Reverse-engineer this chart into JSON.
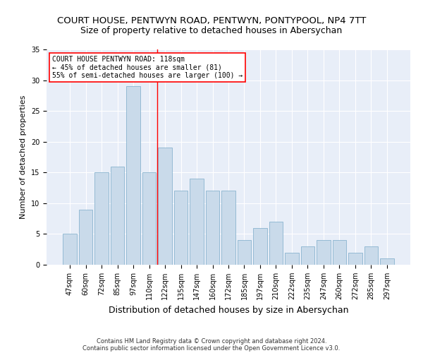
{
  "title": "COURT HOUSE, PENTWYN ROAD, PENTWYN, PONTYPOOL, NP4 7TT",
  "subtitle": "Size of property relative to detached houses in Abersychan",
  "xlabel": "Distribution of detached houses by size in Abersychan",
  "ylabel": "Number of detached properties",
  "categories": [
    "47sqm",
    "60sqm",
    "72sqm",
    "85sqm",
    "97sqm",
    "110sqm",
    "122sqm",
    "135sqm",
    "147sqm",
    "160sqm",
    "172sqm",
    "185sqm",
    "197sqm",
    "210sqm",
    "222sqm",
    "235sqm",
    "247sqm",
    "260sqm",
    "272sqm",
    "285sqm",
    "297sqm"
  ],
  "values": [
    5,
    9,
    15,
    16,
    29,
    15,
    19,
    12,
    14,
    12,
    12,
    4,
    6,
    7,
    2,
    3,
    4,
    4,
    2,
    3,
    1
  ],
  "bar_color": "#c9daea",
  "bar_edge_color": "#7aaac8",
  "bar_edge_width": 0.5,
  "vline_x": 5.5,
  "vline_color": "red",
  "vline_linewidth": 1.0,
  "annotation_title": "COURT HOUSE PENTWYN ROAD: 118sqm",
  "annotation_line2": "← 45% of detached houses are smaller (81)",
  "annotation_line3": "55% of semi-detached houses are larger (100) →",
  "annotation_box_color": "white",
  "annotation_border_color": "red",
  "ylim": [
    0,
    35
  ],
  "yticks": [
    0,
    5,
    10,
    15,
    20,
    25,
    30,
    35
  ],
  "bg_color": "#e8eef8",
  "footnote1": "Contains HM Land Registry data © Crown copyright and database right 2024.",
  "footnote2": "Contains public sector information licensed under the Open Government Licence v3.0.",
  "title_fontsize": 9.5,
  "subtitle_fontsize": 9,
  "ylabel_fontsize": 8,
  "xlabel_fontsize": 9,
  "tick_fontsize": 7,
  "annot_fontsize": 7,
  "footnote_fontsize": 6
}
